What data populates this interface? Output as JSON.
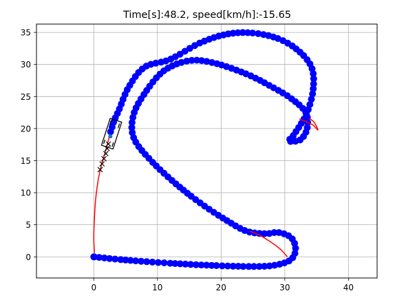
{
  "chart_data": {
    "type": "scatter",
    "title": "Time[s]:48.2, speed[km/h]:-15.65",
    "xlabel": "",
    "ylabel": "",
    "xlim": [
      -9,
      44.5
    ],
    "ylim": [
      -3.3,
      36.3
    ],
    "xticks": [
      0,
      10,
      20,
      30,
      40
    ],
    "yticks": [
      0,
      5,
      10,
      15,
      20,
      25,
      30,
      35
    ],
    "grid": true,
    "colors": {
      "trajectory": "#0000ff",
      "course": "#ff0000",
      "target": "#000000",
      "vehicle": "#000000",
      "heading": "#1f77b4"
    },
    "series": [
      {
        "kind": "trajectory-points",
        "path": [
          [
            0.0,
            0.0
          ],
          [
            5,
            -0.5
          ],
          [
            12,
            -1.0
          ],
          [
            20,
            -1.4
          ],
          [
            26,
            -1.5
          ],
          [
            29,
            -1.2
          ],
          [
            31,
            -0.4
          ],
          [
            31.7,
            1.2
          ],
          [
            31,
            3.0
          ],
          [
            29,
            3.8
          ],
          [
            27,
            3.6
          ],
          [
            24,
            4.0
          ],
          [
            21,
            5.6
          ],
          [
            17,
            8.2
          ],
          [
            13,
            11.3
          ],
          [
            9,
            15.0
          ],
          [
            6.3,
            18.5
          ],
          [
            6.2,
            22.0
          ],
          [
            8,
            25.5
          ],
          [
            11,
            29.0
          ],
          [
            15,
            30.6
          ],
          [
            19,
            30.2
          ],
          [
            24,
            28.5
          ],
          [
            28,
            26.5
          ],
          [
            31,
            24.7
          ],
          [
            33.3,
            22.5
          ],
          [
            33.5,
            20.0
          ],
          [
            32.5,
            18.3
          ],
          [
            31,
            18.0
          ],
          [
            30.6,
            18.1
          ],
          [
            31.6,
            19.3
          ],
          [
            33.5,
            22.5
          ],
          [
            34.5,
            26.5
          ],
          [
            34,
            30
          ],
          [
            31,
            33
          ],
          [
            27,
            34.6
          ],
          [
            22,
            34.9
          ],
          [
            17,
            33.5
          ],
          [
            12,
            30.8
          ],
          [
            8,
            29.6
          ],
          [
            5.5,
            26.5
          ],
          [
            4.0,
            23.0
          ],
          [
            3.3,
            21.5
          ],
          [
            2.8,
            20.0
          ],
          [
            2.4,
            18.8
          ]
        ]
      },
      {
        "kind": "course-line",
        "segments": [
          [
            [
              0.1,
              0.6
            ],
            [
              0.0,
              3.0
            ],
            [
              0.1,
              6.0
            ],
            [
              0.3,
              9.0
            ],
            [
              0.7,
              12.0
            ],
            [
              1.2,
              14.3
            ],
            [
              1.8,
              16.3
            ],
            [
              2.4,
              18.6
            ]
          ],
          [
            [
              30.4,
              0.0
            ],
            [
              29.3,
              1.2
            ],
            [
              27.8,
              2.3
            ],
            [
              26.0,
              3.4
            ],
            [
              24.5,
              4.0
            ]
          ],
          [
            [
              32.3,
              21.5
            ],
            [
              33.7,
              20.9
            ],
            [
              34.5,
              20.5
            ],
            [
              35.2,
              19.8
            ],
            [
              34.6,
              21.0
            ],
            [
              33.8,
              21.6
            ]
          ]
        ]
      },
      {
        "kind": "target-markers",
        "points": [
          [
            1.0,
            13.6
          ],
          [
            1.3,
            14.5
          ],
          [
            1.6,
            15.3
          ],
          [
            1.9,
            16.1
          ],
          [
            2.1,
            16.9
          ],
          [
            2.3,
            17.6
          ]
        ]
      }
    ],
    "vehicle": {
      "center": [
        2.8,
        19.2
      ],
      "heading_deg": 72,
      "length": 4.4,
      "width": 1.9
    }
  }
}
